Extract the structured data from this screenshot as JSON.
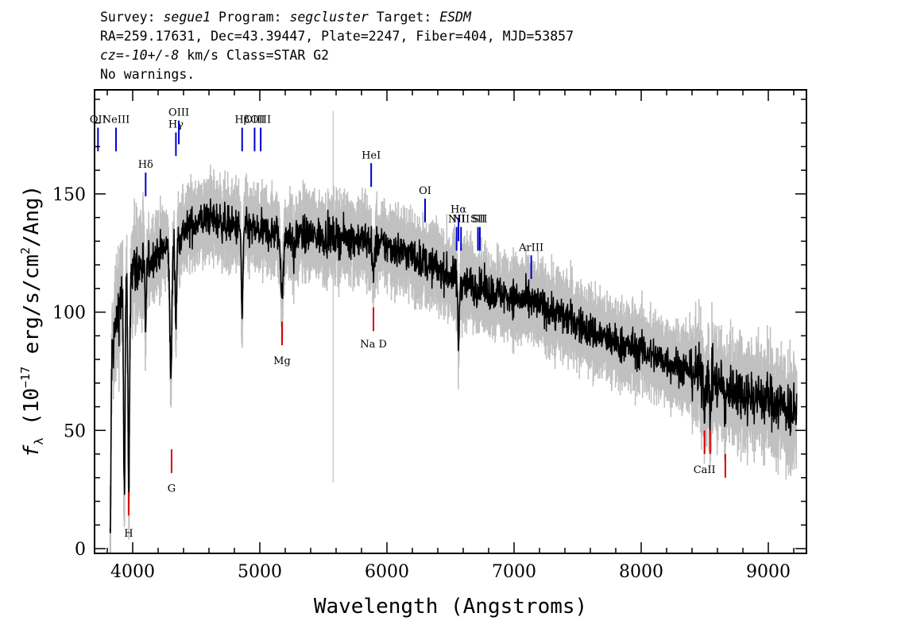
{
  "header": {
    "line1_prefix": "Survey: ",
    "survey": "segue1",
    "program_prefix": " Program: ",
    "program": "segcluster",
    "target_prefix": " Target: ",
    "target": "ESDM",
    "line2": "RA=259.17631, Dec=43.39447, Plate=2247, Fiber=404, MJD=53857",
    "cz_label": "cz=-10+/-8",
    "cz_rest": " km/s Class=STAR G2",
    "line4": "No warnings."
  },
  "colors": {
    "flux": "#000000",
    "error": "#c0c0c0",
    "emission": "#0000cc",
    "absorption": "#dd0000"
  },
  "chart_data": {
    "type": "line",
    "xlabel": "Wavelength (Angstroms)",
    "ylabel": "f_λ (10^-17 erg/s/cm^2/Ang)",
    "xlim": [
      3700,
      9300
    ],
    "ylim": [
      -2,
      194
    ],
    "x_ticks": [
      4000,
      5000,
      6000,
      7000,
      8000,
      9000
    ],
    "y_ticks": [
      0,
      50,
      100,
      150
    ],
    "continuum_knots": [
      [
        3830,
        80
      ],
      [
        3900,
        105
      ],
      [
        4000,
        118
      ],
      [
        4100,
        120
      ],
      [
        4200,
        125
      ],
      [
        4300,
        128
      ],
      [
        4400,
        134
      ],
      [
        4500,
        138
      ],
      [
        4600,
        140
      ],
      [
        4700,
        138
      ],
      [
        4800,
        136
      ],
      [
        5000,
        134
      ],
      [
        5200,
        133
      ],
      [
        5500,
        132
      ],
      [
        5800,
        131
      ],
      [
        6000,
        128
      ],
      [
        6200,
        124
      ],
      [
        6400,
        118
      ],
      [
        6600,
        113
      ],
      [
        6800,
        109
      ],
      [
        7000,
        106
      ],
      [
        7200,
        103
      ],
      [
        7400,
        98
      ],
      [
        7600,
        92
      ],
      [
        7800,
        87
      ],
      [
        8000,
        84
      ],
      [
        8200,
        79
      ],
      [
        8400,
        75
      ],
      [
        8600,
        70
      ],
      [
        8800,
        66
      ],
      [
        9000,
        63
      ],
      [
        9200,
        58
      ]
    ],
    "absorption_features": [
      {
        "wavelength": 3820,
        "depth": 120,
        "width": 6
      },
      {
        "wavelength": 3934,
        "depth": 85,
        "width": 6
      },
      {
        "wavelength": 3969,
        "depth": 95,
        "width": 6
      },
      {
        "wavelength": 4101,
        "depth": 25,
        "width": 6
      },
      {
        "wavelength": 4300,
        "depth": 55,
        "width": 8
      },
      {
        "wavelength": 4340,
        "depth": 35,
        "width": 6
      },
      {
        "wavelength": 4861,
        "depth": 38,
        "width": 6
      },
      {
        "wavelength": 5175,
        "depth": 22,
        "width": 12
      },
      {
        "wavelength": 5270,
        "depth": 10,
        "width": 8
      },
      {
        "wavelength": 5893,
        "depth": 15,
        "width": 8
      },
      {
        "wavelength": 6563,
        "depth": 28,
        "width": 6
      },
      {
        "wavelength": 8498,
        "depth": 12,
        "width": 6
      },
      {
        "wavelength": 8542,
        "depth": 14,
        "width": 6
      },
      {
        "wavelength": 8662,
        "depth": 14,
        "width": 6
      }
    ],
    "emission_lines": [
      {
        "label": "OII",
        "wavelength": 3727,
        "label_y": 180,
        "y_top": 178,
        "y_bottom": 168
      },
      {
        "label": "NeIII",
        "wavelength": 3869,
        "label_y": 180,
        "y_top": 178,
        "y_bottom": 168
      },
      {
        "label": "Hδ",
        "wavelength": 4102,
        "label_y": 161,
        "y_top": 159,
        "y_bottom": 149
      },
      {
        "label": "Hγ",
        "wavelength": 4340,
        "label_y": 178,
        "y_top": 176,
        "y_bottom": 166
      },
      {
        "label": "OIII",
        "wavelength": 4363,
        "label_y": 183,
        "y_top": 181,
        "y_bottom": 171
      },
      {
        "label": "Hβ",
        "wavelength": 4861,
        "label_y": 180,
        "y_top": 178,
        "y_bottom": 168
      },
      {
        "label": "OIII",
        "wavelength": 4959,
        "label_y": 180,
        "y_top": 178,
        "y_bottom": 168
      },
      {
        "label": "OIII",
        "wavelength": 5007,
        "label_y": 180,
        "y_top": 178,
        "y_bottom": 168
      },
      {
        "label": "HeI",
        "wavelength": 5876,
        "label_y": 165,
        "y_top": 163,
        "y_bottom": 153
      },
      {
        "label": "OI",
        "wavelength": 6300,
        "label_y": 150,
        "y_top": 148,
        "y_bottom": 138
      },
      {
        "label": "NII",
        "wavelength": 6548,
        "label_y": 138,
        "y_top": 136,
        "y_bottom": 126
      },
      {
        "label": "Hα",
        "wavelength": 6563,
        "label_y": 142,
        "y_top": 140,
        "y_bottom": 130
      },
      {
        "label": "NII",
        "wavelength": 6583,
        "label_y": 138,
        "y_top": 136,
        "y_bottom": 126
      },
      {
        "label": "SII",
        "wavelength": 6716,
        "label_y": 138,
        "y_top": 136,
        "y_bottom": 126
      },
      {
        "label": "SII",
        "wavelength": 6731,
        "label_y": 138,
        "y_top": 136,
        "y_bottom": 126
      },
      {
        "label": "ArIII",
        "wavelength": 7135,
        "label_y": 126,
        "y_top": 124,
        "y_bottom": 114
      }
    ],
    "absorption_lines": [
      {
        "label": "H",
        "wavelength": 3968,
        "label_y": 5,
        "y_top": 24,
        "y_bottom": 14
      },
      {
        "label": "G",
        "wavelength": 4306,
        "label_y": 24,
        "y_top": 42,
        "y_bottom": 32
      },
      {
        "label": "Mg",
        "wavelength": 5175,
        "label_y": 78,
        "y_top": 96,
        "y_bottom": 86
      },
      {
        "label": "Na D",
        "wavelength": 5894,
        "label_y": 85,
        "y_top": 102,
        "y_bottom": 92
      },
      {
        "label": "CaII",
        "wavelength": 8498,
        "label_y": 32,
        "y_top": 50,
        "y_bottom": 40
      },
      {
        "label": "CaII",
        "wavelength": 8542,
        "label_y": -100,
        "y_top": 50,
        "y_bottom": 40
      },
      {
        "label": "CaII",
        "wavelength": 8662,
        "label_y": -100,
        "y_top": 40,
        "y_bottom": 30
      }
    ]
  }
}
